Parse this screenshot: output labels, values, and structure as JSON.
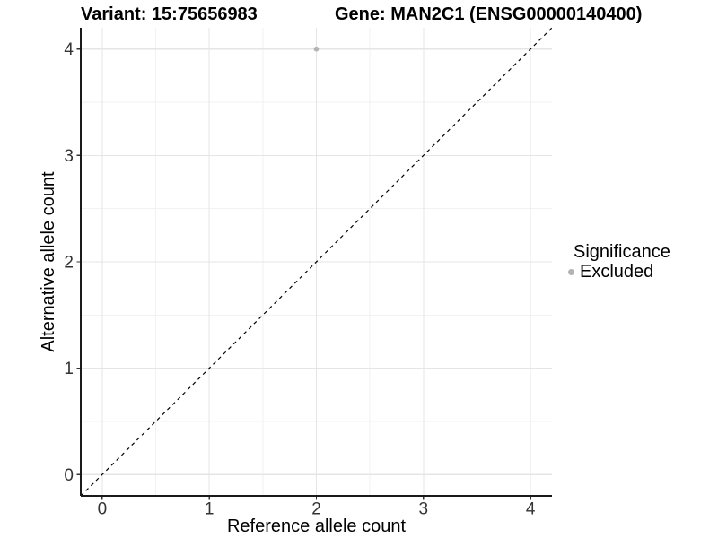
{
  "chart_data": {
    "type": "scatter",
    "titles": {
      "variant": "Variant: 15:75656983",
      "gene": "Gene: MAN2C1 (ENSG00000140400)"
    },
    "xlabel": "Reference allele count",
    "ylabel": "Alternative allele count",
    "xlim": [
      -0.2,
      4.2
    ],
    "ylim": [
      -0.2,
      4.2
    ],
    "xticks": [
      0,
      1,
      2,
      3,
      4
    ],
    "yticks": [
      0,
      1,
      2,
      3,
      4
    ],
    "xminor": [
      0.5,
      1.5,
      2.5,
      3.5
    ],
    "yminor": [
      0.5,
      1.5,
      2.5,
      3.5
    ],
    "grid": true,
    "points": [
      {
        "x": 2,
        "y": 4,
        "significance": "Excluded"
      }
    ],
    "identity_line": {
      "slope": 1,
      "intercept": 0,
      "style": "dashed"
    },
    "legend": {
      "title": "Significance",
      "position": "right",
      "items": [
        {
          "label": "Excluded",
          "color": "#b3b3b3"
        }
      ]
    },
    "colors": {
      "point": "#b3b3b3",
      "grid_major": "#e5e5e5",
      "grid_minor": "#f2f2f2",
      "axis_line": "#1a1a1a",
      "tick_mark": "#333333",
      "tick_label": "#333333",
      "dashed_line": "#000000"
    }
  }
}
